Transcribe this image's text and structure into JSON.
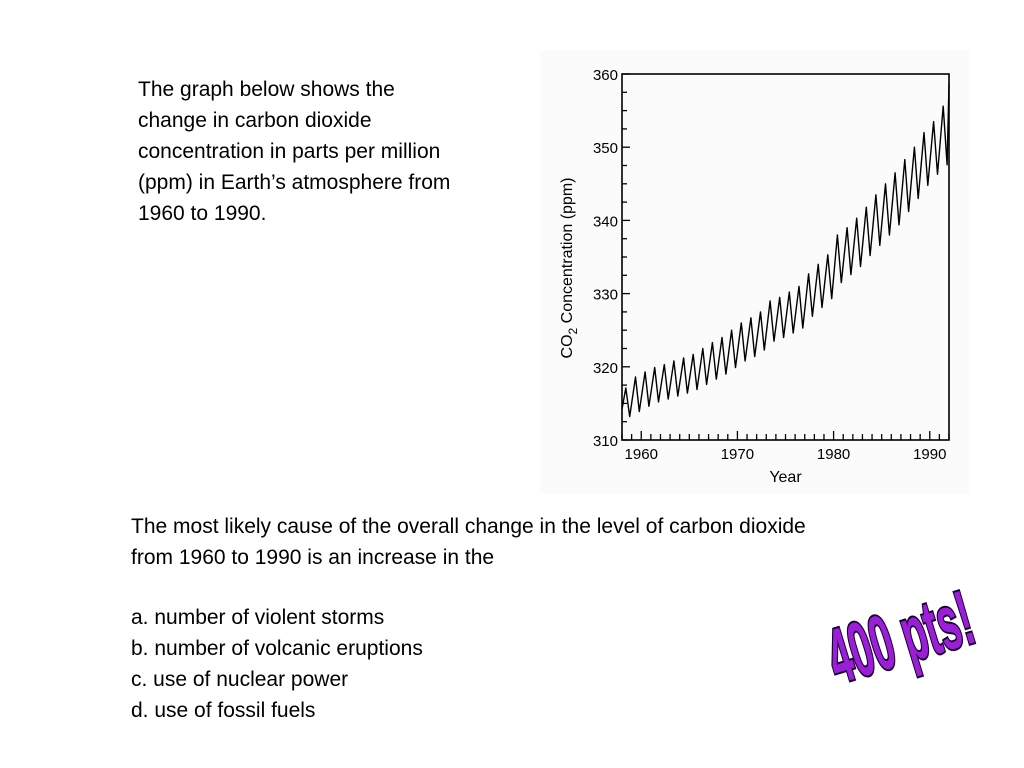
{
  "intro_text": "The graph below shows the change in carbon dioxide concentration in parts per million (ppm) in Earth’s atmosphere from 1960 to 1990.",
  "question": {
    "line1": "The most likely cause of the overall change in the level of carbon dioxide",
    "line2": "from 1960 to 1990 is an increase in the"
  },
  "answers": [
    "a. number of violent storms",
    "b. number of volcanic eruptions",
    "c. use of nuclear power",
    "d. use of fossil fuels"
  ],
  "points_label": "400 pts!",
  "colors": {
    "points_fill": "#9b1fd6",
    "points_outline": "#1a0033",
    "chart_line": "#000000",
    "chart_background": "#fbfbfb"
  },
  "chart_data": {
    "type": "line",
    "title": "",
    "xlabel": "Year",
    "ylabel_parts": [
      "CO",
      "2",
      " Concentration (ppm)"
    ],
    "xlim": [
      1958,
      1992
    ],
    "ylim": [
      310,
      360
    ],
    "x_ticks": [
      1960,
      1970,
      1980,
      1990
    ],
    "x_tick_labels": [
      "1960",
      "1970",
      "1980",
      "1990"
    ],
    "y_ticks": [
      310,
      320,
      330,
      340,
      350,
      360
    ],
    "y_tick_labels": [
      "310",
      "320",
      "330",
      "340",
      "350",
      "360"
    ],
    "grid": false,
    "series": [
      {
        "x": [
          1958.0,
          1958.4,
          1958.8,
          1959.4,
          1959.8,
          1960.4,
          1960.8,
          1961.4,
          1961.8,
          1962.4,
          1962.8,
          1963.4,
          1963.8,
          1964.4,
          1964.8,
          1965.4,
          1965.8,
          1966.4,
          1966.8,
          1967.4,
          1967.8,
          1968.4,
          1968.8,
          1969.4,
          1969.8,
          1970.4,
          1970.8,
          1971.4,
          1971.8,
          1972.4,
          1972.8,
          1973.4,
          1973.8,
          1974.4,
          1974.8,
          1975.4,
          1975.8,
          1976.4,
          1976.8,
          1977.4,
          1977.8,
          1978.4,
          1978.8,
          1979.4,
          1979.8,
          1980.4,
          1980.8,
          1981.4,
          1981.8,
          1982.4,
          1982.8,
          1983.4,
          1983.8,
          1984.4,
          1984.8,
          1985.4,
          1985.8,
          1986.4,
          1986.8,
          1987.4,
          1987.8,
          1988.4,
          1988.8,
          1989.4,
          1989.8,
          1990.4,
          1990.8,
          1991.4,
          1991.8,
          1992.0
        ],
        "y": [
          314.2,
          317.1,
          313.2,
          318.6,
          313.9,
          319.3,
          314.6,
          319.9,
          315.2,
          320.3,
          315.6,
          320.8,
          316.0,
          321.2,
          316.4,
          321.7,
          316.9,
          322.5,
          317.6,
          323.3,
          318.3,
          324.0,
          319.0,
          325.0,
          319.9,
          326.0,
          320.8,
          326.7,
          321.4,
          327.5,
          322.3,
          329.0,
          323.5,
          329.5,
          324.0,
          330.2,
          324.6,
          331.0,
          325.3,
          332.7,
          326.9,
          334.0,
          328.1,
          335.3,
          329.3,
          338.0,
          331.5,
          339.0,
          332.6,
          340.3,
          333.7,
          341.8,
          335.2,
          343.5,
          336.6,
          345.0,
          338.0,
          346.5,
          339.4,
          348.3,
          341.2,
          350.0,
          343.0,
          352.0,
          344.8,
          353.5,
          346.3,
          355.6,
          347.6,
          358.7
        ]
      }
    ]
  }
}
